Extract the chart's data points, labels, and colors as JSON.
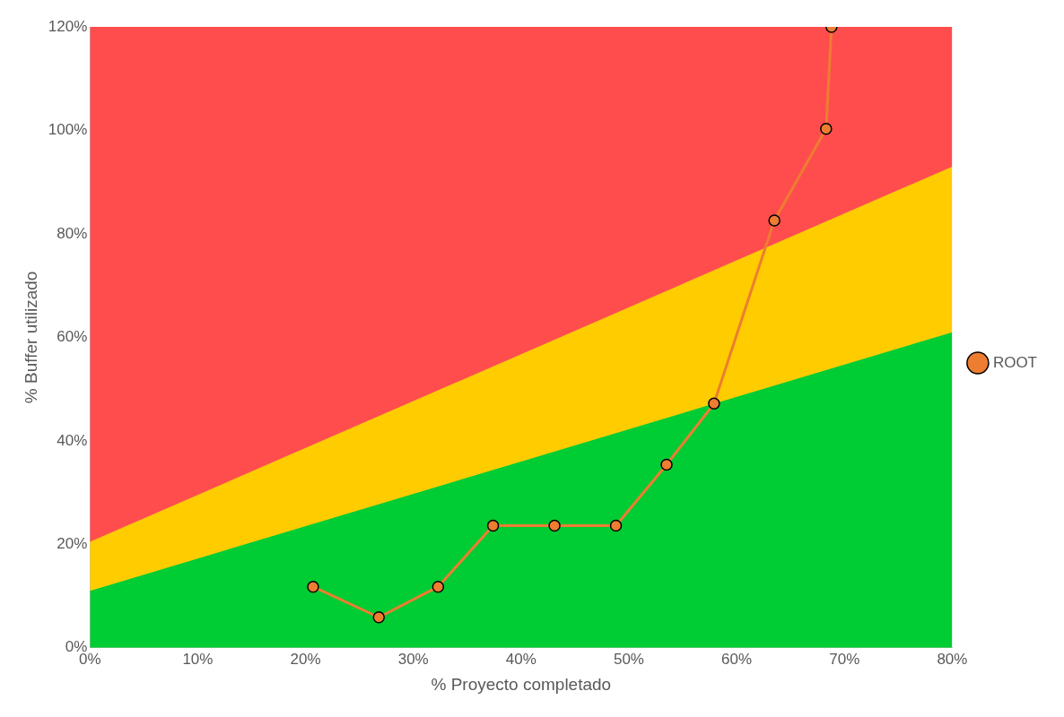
{
  "chart_data": {
    "type": "line",
    "xlabel": "% Proyecto completado",
    "ylabel": "% Buffer utilizado",
    "xlim": [
      0,
      80
    ],
    "ylim": [
      0,
      120
    ],
    "xticks": [
      {
        "value": 0,
        "label": "0%"
      },
      {
        "value": 10,
        "label": "10%"
      },
      {
        "value": 20,
        "label": "20%"
      },
      {
        "value": 30,
        "label": "30%"
      },
      {
        "value": 40,
        "label": "40%"
      },
      {
        "value": 50,
        "label": "50%"
      },
      {
        "value": 60,
        "label": "60%"
      },
      {
        "value": 70,
        "label": "70%"
      },
      {
        "value": 80,
        "label": "80%"
      }
    ],
    "yticks": [
      {
        "value": 0,
        "label": "0%"
      },
      {
        "value": 20,
        "label": "20%"
      },
      {
        "value": 40,
        "label": "40%"
      },
      {
        "value": 60,
        "label": "60%"
      },
      {
        "value": 80,
        "label": "80%"
      },
      {
        "value": 100,
        "label": "100%"
      },
      {
        "value": 120,
        "label": "120%"
      }
    ],
    "grid": false,
    "legend": "right",
    "marker": "circle",
    "line_style": "solid",
    "series": [
      {
        "type": "area",
        "marker": "none",
        "color": "#00cc33",
        "x": [
          0,
          80
        ],
        "values": [
          11,
          61
        ]
      },
      {
        "type": "area",
        "marker": "none",
        "color": "#ffcc00",
        "x": [
          0,
          80
        ],
        "values": [
          20.5,
          93
        ]
      },
      {
        "type": "area",
        "marker": "none",
        "color": "#ff4d4d",
        "x": [
          0,
          80
        ],
        "values": [
          120,
          120
        ]
      },
      {
        "type": "line",
        "name": "ROOT",
        "color": "#ed7d31",
        "x": [
          20.7,
          26.8,
          32.3,
          37.4,
          43.1,
          48.8,
          53.5,
          57.9,
          63.5,
          68.3,
          68.8
        ],
        "values": [
          11.8,
          5.9,
          11.8,
          23.6,
          23.6,
          23.6,
          35.4,
          47.2,
          82.6,
          100.3,
          120
        ]
      }
    ]
  }
}
